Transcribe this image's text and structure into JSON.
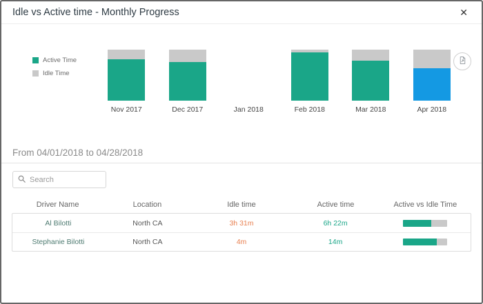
{
  "dialog": {
    "title": "Idle vs Active time - Monthly Progress",
    "close_label": "✕"
  },
  "toolbar": {
    "export_icon": "export-report-icon"
  },
  "chart_data": {
    "type": "bar",
    "stacked": true,
    "normalized_to_pct": true,
    "categories": [
      "Nov 2017",
      "Dec 2017",
      "Jan 2018",
      "Feb 2018",
      "Mar 2018",
      "Apr 2018"
    ],
    "series": [
      {
        "name": "Active Time",
        "color": "#1aa688",
        "values_pct": [
          81,
          76,
          0,
          95,
          79,
          64
        ]
      },
      {
        "name": "Idle Time",
        "color": "#c9c9c9",
        "values_pct": [
          19,
          24,
          0,
          5,
          21,
          36
        ]
      }
    ],
    "selected_category": "Apr 2018",
    "selected_active_color": "#1499e3",
    "legend": [
      "Active Time",
      "Idle Time"
    ],
    "legend_position": "left",
    "grid": false
  },
  "period": {
    "label": "From 04/01/2018 to 04/28/2018"
  },
  "search": {
    "placeholder": "Search"
  },
  "table": {
    "columns": [
      "Driver Name",
      "Location",
      "Idle time",
      "Active time",
      "Active vs Idle Time"
    ],
    "rows": [
      {
        "driver": "Al Bilotti",
        "location": "North CA",
        "idle_time": "3h 31m",
        "active_time": "6h 22m",
        "active_pct": 64
      },
      {
        "driver": "Stephanie Bilotti",
        "location": "North CA",
        "idle_time": "4m",
        "active_time": "14m",
        "active_pct": 78
      }
    ]
  },
  "colors": {
    "active": "#1aa688",
    "idle": "#c9c9c9",
    "selected": "#1499e3",
    "idle_text": "#e87f4f",
    "active_text": "#1aa688",
    "driver_text": "#4d7a70"
  }
}
